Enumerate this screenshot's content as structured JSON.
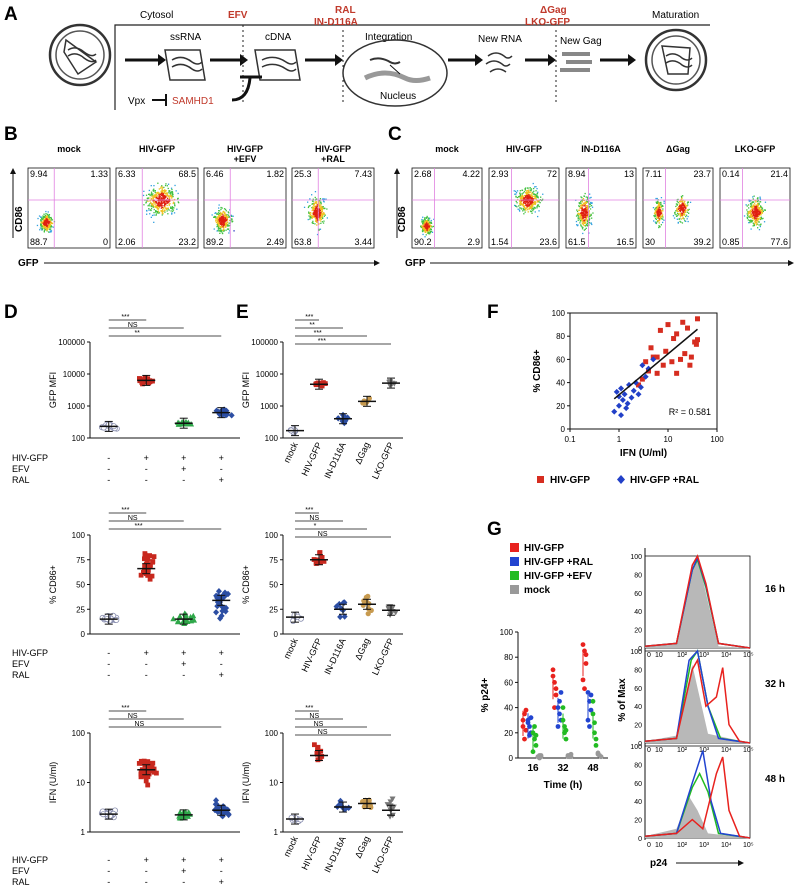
{
  "panels": [
    "A",
    "B",
    "C",
    "D",
    "E",
    "F",
    "G"
  ],
  "panelA": {
    "cytosol": "Cytosol",
    "ssrna": "ssRNA",
    "cdna": "cDNA",
    "integration": "Integration",
    "nucleus": "Nucleus",
    "new_rna": "New RNA",
    "new_gag": "New Gag",
    "maturation": "Maturation",
    "vpx": "Vpx",
    "samhd1": "SAMHD1",
    "efv": "EFV",
    "ral": "RAL",
    "in_d116a": "IN-D116A",
    "dgag": "ΔGag",
    "lko": "LKO-GFP"
  },
  "panelB": {
    "ylabel": "CD86",
    "xlabel": "GFP",
    "plots": [
      {
        "title": [
          "mock"
        ],
        "q": [
          "9.94",
          "1.33",
          "88.7",
          "0"
        ]
      },
      {
        "title": [
          "HIV-GFP"
        ],
        "q": [
          "6.33",
          "68.5",
          "2.06",
          "23.2"
        ]
      },
      {
        "title": [
          "HIV-GFP",
          "+EFV"
        ],
        "q": [
          "6.46",
          "1.82",
          "89.2",
          "2.49"
        ]
      },
      {
        "title": [
          "HIV-GFP",
          "+RAL"
        ],
        "q": [
          "25.3",
          "7.43",
          "63.8",
          "3.44"
        ]
      }
    ]
  },
  "panelC": {
    "ylabel": "CD86",
    "xlabel": "GFP",
    "plots": [
      {
        "title": [
          "mock"
        ],
        "q": [
          "2.68",
          "4.22",
          "90.2",
          "2.9"
        ]
      },
      {
        "title": [
          "HIV-GFP"
        ],
        "q": [
          "2.93",
          "72",
          "1.54",
          "23.6"
        ]
      },
      {
        "title": [
          "IN-D116A"
        ],
        "q": [
          "8.94",
          "13",
          "61.5",
          "16.5"
        ]
      },
      {
        "title": [
          "ΔGag"
        ],
        "q": [
          "7.11",
          "23.7",
          "30",
          "39.2"
        ]
      },
      {
        "title": [
          "LKO-GFP"
        ],
        "q": [
          "0.14",
          "21.4",
          "0.85",
          "77.6"
        ]
      }
    ]
  },
  "panelD": {
    "row_labels": [
      "HIV-GFP",
      "EFV",
      "RAL"
    ],
    "cols": [
      [
        "-",
        "-",
        "-"
      ],
      [
        "+",
        "-",
        "-"
      ],
      [
        "+",
        "+",
        "-"
      ],
      [
        "+",
        "-",
        "+"
      ]
    ],
    "sig": [
      "***",
      "NS",
      "**",
      "***",
      "NS",
      "***",
      "***",
      "NS",
      "NS"
    ],
    "mfi": {
      "ylabel": "GFP MFI",
      "ticks": [
        "100",
        "1000",
        "10000",
        "100000"
      ],
      "means": [
        230,
        6300,
        290,
        620
      ]
    },
    "cd86": {
      "ylabel": "% CD86+",
      "ticks": [
        "0",
        "25",
        "50",
        "75",
        "100"
      ],
      "means": [
        15,
        66,
        15,
        34
      ]
    },
    "ifn": {
      "ylabel": "IFN (U/ml)",
      "ticks": [
        "1",
        "10",
        "100"
      ],
      "means": [
        1.3,
        14,
        1.25,
        1.6
      ]
    }
  },
  "panelE": {
    "cats": [
      "mock",
      "HIV-GFP",
      "IN-D116A",
      "ΔGag",
      "LKO-GFP"
    ],
    "sig_mfi": [
      "***",
      "**",
      "***",
      "***"
    ],
    "sig_cd86": [
      "***",
      "NS",
      "*",
      "NS"
    ],
    "sig_ifn": [
      "***",
      "NS",
      "NS",
      "NS"
    ],
    "mfi": {
      "ylabel": "GFP MFI",
      "ticks": [
        "100",
        "1000",
        "10000",
        "100000"
      ],
      "means": [
        170,
        4800,
        400,
        1400,
        5200
      ]
    },
    "cd86": {
      "ylabel": "% CD86+",
      "ticks": [
        "0",
        "25",
        "50",
        "75",
        "100"
      ],
      "means": [
        17,
        75,
        25,
        30,
        24
      ]
    },
    "ifn": {
      "ylabel": "IFN (U/ml)",
      "ticks": [
        "1",
        "10",
        "100"
      ],
      "means": [
        1.0,
        30,
        1.9,
        2.3,
        1.6
      ]
    }
  },
  "chart_data": [
    {
      "type": "scatter",
      "panel": "F",
      "xlabel": "IFN (U/ml)",
      "ylabel": "% CD86+",
      "xscale": "log",
      "xlim": [
        0.1,
        100
      ],
      "ylim": [
        0,
        100
      ],
      "xticks": [
        "0.1",
        "1",
        "10",
        "100"
      ],
      "yticks": [
        "0",
        "20",
        "40",
        "60",
        "80",
        "100"
      ],
      "annotation": "R² = 0.581",
      "series": [
        {
          "name": "HIV-GFP",
          "color": "#d62d20",
          "points": [
            [
              3,
              43
            ],
            [
              3.5,
              58
            ],
            [
              4,
              50
            ],
            [
              5,
              62
            ],
            [
              6,
              48
            ],
            [
              7,
              85
            ],
            [
              8,
              55
            ],
            [
              10,
              90
            ],
            [
              12,
              58
            ],
            [
              13,
              78
            ],
            [
              15,
              82
            ],
            [
              18,
              60
            ],
            [
              20,
              92
            ],
            [
              25,
              87
            ],
            [
              28,
              55
            ],
            [
              30,
              62
            ],
            [
              35,
              75
            ],
            [
              38,
              73
            ],
            [
              40,
              95
            ],
            [
              40,
              77
            ],
            [
              2.5,
              38
            ],
            [
              4.5,
              70
            ],
            [
              9,
              67
            ],
            [
              6,
              62
            ],
            [
              22,
              65
            ],
            [
              15,
              48
            ]
          ]
        },
        {
          "name": "HIV-GFP +RAL",
          "color": "#2240c8",
          "points": [
            [
              0.8,
              15
            ],
            [
              0.9,
              32
            ],
            [
              1,
              28
            ],
            [
              1,
              20
            ],
            [
              1.1,
              35
            ],
            [
              1.2,
              25
            ],
            [
              1.3,
              30
            ],
            [
              1.5,
              22
            ],
            [
              1.6,
              38
            ],
            [
              1.8,
              27
            ],
            [
              2,
              33
            ],
            [
              2.2,
              40
            ],
            [
              2.5,
              30
            ],
            [
              3,
              55
            ],
            [
              3.5,
              45
            ],
            [
              4,
              52
            ],
            [
              5,
              60
            ],
            [
              1.4,
              18
            ],
            [
              2.8,
              36
            ],
            [
              1.1,
              12
            ]
          ]
        }
      ],
      "trendline": [
        [
          0.8,
          26
        ],
        [
          40,
          86
        ]
      ]
    },
    {
      "type": "scatter",
      "panel": "G",
      "xlabel": "Time (h)",
      "ylabel": "% p24+",
      "categories": [
        "16",
        "32",
        "48"
      ],
      "ylim": [
        0,
        100
      ],
      "yticks": [
        "0",
        "20",
        "40",
        "60",
        "80",
        "100"
      ],
      "series": [
        {
          "name": "HIV-GFP",
          "color": "#e8221e",
          "values": [
            [
              30,
              35,
              38,
              25,
              15,
              22
            ],
            [
              65,
              60,
              55,
              70,
              40,
              50
            ],
            [
              90,
              85,
              75,
              62,
              55,
              82
            ]
          ]
        },
        {
          "name": "HIV-GFP +RAL",
          "color": "#2244d0",
          "values": [
            [
              28,
              25,
              20,
              30,
              18,
              32
            ],
            [
              40,
              35,
              30,
              25,
              45,
              52
            ],
            [
              52,
              45,
              38,
              30,
              25,
              50
            ]
          ]
        },
        {
          "name": "HIV-GFP +EFV",
          "color": "#22bb22",
          "values": [
            [
              20,
              15,
              10,
              5,
              25,
              18
            ],
            [
              30,
              20,
              15,
              40,
              25,
              22
            ],
            [
              35,
              28,
              15,
              45,
              20,
              10
            ]
          ]
        },
        {
          "name": "mock",
          "color": "#999999",
          "values": [
            [
              1,
              2,
              1,
              1,
              0,
              2
            ],
            [
              2,
              1,
              3,
              1,
              2,
              1
            ],
            [
              3,
              2,
              1,
              4,
              2,
              1
            ]
          ]
        }
      ]
    },
    {
      "type": "area",
      "panel": "G",
      "xlabel": "p24",
      "ylabel": "% of Max",
      "times": [
        "16 h",
        "32 h",
        "48 h"
      ],
      "xticks": [
        "0",
        "10",
        "10²",
        "10³",
        "10⁴",
        "10⁵"
      ],
      "yticks": [
        "0",
        "20",
        "40",
        "60",
        "80",
        "100"
      ]
    }
  ],
  "legendG": [
    "HIV-GFP",
    "HIV-GFP +RAL",
    "HIV-GFP +EFV",
    "mock"
  ],
  "legendF": [
    "HIV-GFP",
    "HIV-GFP +RAL"
  ]
}
